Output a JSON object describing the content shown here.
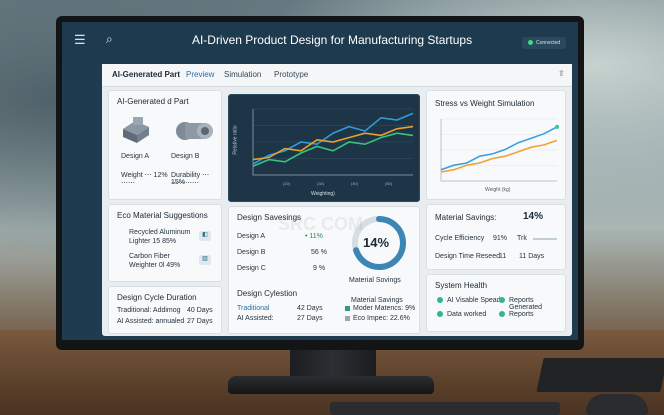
{
  "window": {
    "title": "AI-Driven Product Design for Manufacturing Startups",
    "status": "Connected",
    "menu_icon": "hamburger-icon",
    "search_icon": "search-icon"
  },
  "tabs": [
    {
      "label": "AI-Generated Part",
      "active": true
    },
    {
      "label": "Preview"
    },
    {
      "label": "Simulation"
    },
    {
      "label": "Prototype"
    }
  ],
  "parts_card": {
    "title": "AI-Generated d Part",
    "part_a": {
      "label": "Design A",
      "stat1": "Weight ⋯ 12%",
      "stat2": "⋯⋯"
    },
    "part_b": {
      "label": "Design B",
      "stat1": "Durability ⋯ 15%",
      "stat2": "⋯⋯⋯⋯"
    }
  },
  "line_chart": {
    "ylabel": "Relative ratio",
    "xlabel": "Weighting)",
    "xticks": [
      "(20)",
      "(30)",
      "(40)",
      "(50)"
    ]
  },
  "stress_card": {
    "title": "Stress vs Weight Simulation",
    "xlabel": "Weight (kg)"
  },
  "eco_card": {
    "title": "Eco Material Suggestions",
    "items": [
      {
        "name": "Recycled Aluminum",
        "sub": "Lighter 15 85%"
      },
      {
        "name": "Carbon Fiber",
        "sub": "Weighter 0l 49%"
      }
    ]
  },
  "savings_card": {
    "title": "Design Savesings",
    "rows": [
      {
        "label": "Design A",
        "value": "11%"
      },
      {
        "label": "Design B",
        "value": "56 %"
      },
      {
        "label": "Design C",
        "value": "9 %"
      }
    ],
    "ring_value": "14%",
    "ring_label": "Material Sovings",
    "legend_title": "Material Savings",
    "legend": [
      {
        "label": "Moder Matencs: 9%",
        "color": "#2f9e77"
      },
      {
        "label": "Eco Impec:     22.6%",
        "color": "#9aa7b0"
      }
    ]
  },
  "metrics_card": {
    "title": "Material Savings:",
    "value": "14%",
    "rows": [
      {
        "label": "Cycle Efficiency",
        "value": "91%",
        "extra": "Trk"
      },
      {
        "label": "Design Time Reseed",
        "value": "11",
        "extra": "11 Days"
      }
    ]
  },
  "cycle_card": {
    "title": "Design Cycle Duration",
    "rows": [
      {
        "label": "Traditional: Addimog",
        "value": "40 Days"
      },
      {
        "label": "AI Assisted: annualed",
        "value": "27 Days"
      }
    ]
  },
  "cylestion_card": {
    "title": "Design Cylestion",
    "rows": [
      {
        "label": "Traditional",
        "value": "42 Days"
      },
      {
        "label": "AI Assisted:",
        "value": "27 Days"
      }
    ]
  },
  "health_card": {
    "title": "System Health",
    "items": [
      {
        "label": "AI Visable Spead",
        "color": "#35b58a"
      },
      {
        "label": "Reports Generated",
        "color": "#35b58a"
      },
      {
        "label": "Data worked",
        "color": "#35b58a"
      },
      {
        "label": "Reports",
        "color": "#35b58a"
      }
    ]
  },
  "watermark": "SRC COM",
  "chart_data": [
    {
      "type": "line",
      "title": "",
      "xlabel": "Weighting)",
      "ylabel": "Relative ratio",
      "x": [
        0,
        1,
        2,
        3,
        4,
        5,
        6,
        7,
        8,
        9,
        10
      ],
      "series": [
        {
          "color": "#2f9bd8",
          "values": [
            10,
            18,
            22,
            30,
            28,
            38,
            44,
            40,
            52,
            50,
            56
          ]
        },
        {
          "color": "#e0a32e",
          "values": [
            14,
            16,
            24,
            22,
            32,
            30,
            34,
            38,
            36,
            42,
            44
          ]
        },
        {
          "color": "#39c27f",
          "values": [
            8,
            14,
            12,
            20,
            26,
            22,
            30,
            28,
            34,
            38,
            36
          ]
        }
      ],
      "ylim": [
        0,
        60
      ]
    },
    {
      "type": "line",
      "title": "Stress vs Weight Simulation",
      "xlabel": "Weight (kg)",
      "x": [
        0,
        1,
        2,
        3,
        4,
        5,
        6,
        7,
        8,
        9
      ],
      "series": [
        {
          "color": "#3aa0e0",
          "values": [
            10,
            14,
            16,
            22,
            24,
            28,
            34,
            38,
            42,
            48
          ]
        },
        {
          "color": "#f0a23a",
          "values": [
            8,
            10,
            14,
            16,
            20,
            22,
            26,
            30,
            32,
            36
          ]
        }
      ],
      "ylim": [
        0,
        55
      ]
    }
  ]
}
